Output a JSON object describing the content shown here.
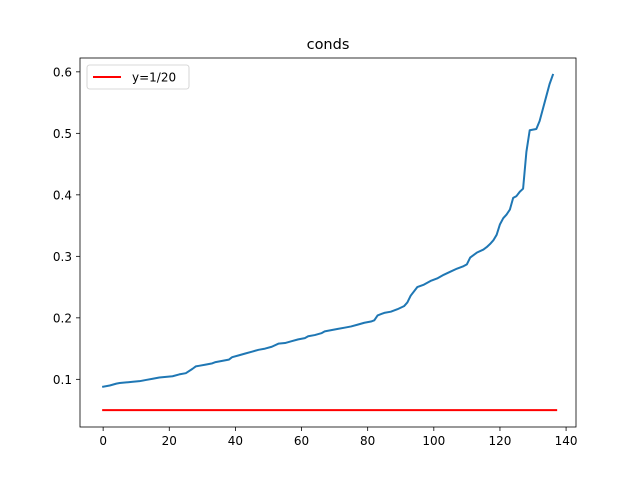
{
  "chart_data": {
    "type": "line",
    "title": "conds",
    "xlabel": "",
    "ylabel": "",
    "xlim": [
      -7,
      143
    ],
    "ylim": [
      0.0225,
      0.6225
    ],
    "xticks": [
      0,
      20,
      40,
      60,
      80,
      100,
      120,
      140
    ],
    "yticks": [
      0.1,
      0.2,
      0.3,
      0.4,
      0.5,
      0.6
    ],
    "xtick_labels": [
      "0",
      "20",
      "40",
      "60",
      "80",
      "100",
      "120",
      "140"
    ],
    "ytick_labels": [
      "0.1",
      "0.2",
      "0.3",
      "0.4",
      "0.5",
      "0.6"
    ],
    "grid": false,
    "legend_position": "top-left",
    "series": [
      {
        "color": "#1f77b4",
        "x": [
          0,
          2,
          4,
          5,
          7,
          9,
          11,
          13,
          15,
          17,
          19,
          21,
          23,
          25,
          27,
          28,
          29,
          31,
          33,
          34,
          36,
          38,
          39,
          41,
          43,
          45,
          47,
          49,
          51,
          53,
          55,
          57,
          59,
          61,
          62,
          64,
          66,
          67,
          69,
          71,
          73,
          75,
          77,
          79,
          81,
          82,
          83,
          85,
          87,
          89,
          91,
          92,
          93,
          95,
          97,
          99,
          101,
          103,
          105,
          107,
          109,
          110,
          111,
          113,
          115,
          116,
          117,
          118,
          119,
          120,
          121,
          122,
          123,
          124,
          125,
          126,
          127,
          128,
          129,
          130,
          131,
          132,
          133,
          134,
          135,
          136
        ],
        "values": [
          0.088,
          0.09,
          0.093,
          0.094,
          0.095,
          0.096,
          0.097,
          0.099,
          0.101,
          0.103,
          0.104,
          0.105,
          0.108,
          0.11,
          0.117,
          0.121,
          0.122,
          0.124,
          0.126,
          0.128,
          0.13,
          0.132,
          0.136,
          0.139,
          0.142,
          0.145,
          0.148,
          0.15,
          0.153,
          0.158,
          0.159,
          0.162,
          0.165,
          0.167,
          0.17,
          0.172,
          0.175,
          0.178,
          0.18,
          0.182,
          0.184,
          0.186,
          0.189,
          0.192,
          0.194,
          0.196,
          0.204,
          0.208,
          0.21,
          0.214,
          0.219,
          0.225,
          0.236,
          0.25,
          0.254,
          0.26,
          0.264,
          0.27,
          0.275,
          0.28,
          0.284,
          0.287,
          0.298,
          0.306,
          0.311,
          0.315,
          0.32,
          0.326,
          0.335,
          0.352,
          0.362,
          0.368,
          0.376,
          0.395,
          0.398,
          0.405,
          0.41,
          0.47,
          0.505,
          0.506,
          0.507,
          0.52,
          0.54,
          0.56,
          0.58,
          0.595
        ]
      },
      {
        "name": "y=1/20",
        "color": "#ff0000",
        "x": [
          0,
          137
        ],
        "values": [
          0.05,
          0.05
        ]
      }
    ]
  }
}
